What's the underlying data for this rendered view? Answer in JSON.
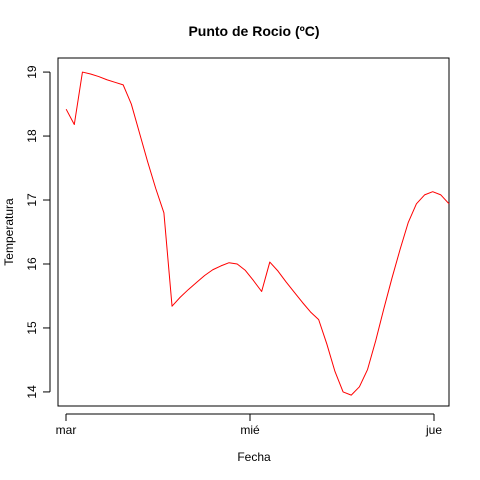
{
  "chart_data": {
    "type": "line",
    "title": "Punto de Rocio (ºC)",
    "xlabel": "Fecha",
    "ylabel": "Temperatura",
    "x_ticks": [
      "mar",
      "mié",
      "jue"
    ],
    "y_ticks": [
      14,
      15,
      16,
      17,
      18,
      19
    ],
    "xlim": [
      0,
      48
    ],
    "ylim": [
      13.78,
      19.22
    ],
    "grid": false,
    "legend": "none",
    "series": [
      {
        "color": "#ff0000",
        "x": [
          1,
          2,
          3,
          4,
          5,
          6,
          7,
          8,
          9,
          10,
          11,
          12,
          13,
          14,
          15,
          16,
          17,
          18,
          19,
          20,
          21,
          22,
          23,
          24,
          25,
          26,
          27,
          28,
          29,
          30,
          31,
          32,
          33,
          34,
          35,
          36,
          37,
          38,
          39,
          40,
          41,
          42,
          43,
          44,
          45,
          46,
          47,
          48
        ],
        "y": [
          18.42,
          18.18,
          19.0,
          18.97,
          18.93,
          18.88,
          18.84,
          18.8,
          18.5,
          18.05,
          17.6,
          17.18,
          16.8,
          15.34,
          15.48,
          15.6,
          15.71,
          15.82,
          15.91,
          15.97,
          16.02,
          16.0,
          15.9,
          15.74,
          15.57,
          16.03,
          15.89,
          15.72,
          15.56,
          15.4,
          15.25,
          15.13,
          14.75,
          14.32,
          14.0,
          13.95,
          14.08,
          14.35,
          14.8,
          15.3,
          15.78,
          16.23,
          16.65,
          16.94,
          17.08,
          17.13,
          17.08,
          16.94
        ]
      }
    ]
  },
  "colors": {
    "series": "#ff0000",
    "axis": "#000000",
    "background": "#ffffff"
  }
}
